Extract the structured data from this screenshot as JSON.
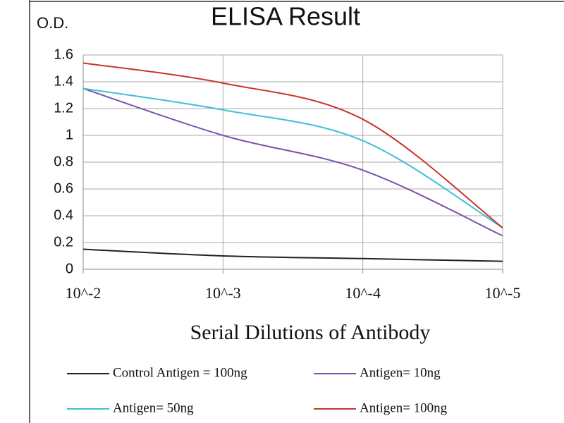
{
  "chart_data": {
    "type": "line",
    "title": "ELISA Result",
    "y_label": "O.D.",
    "x_label": "Serial Dilutions  of Antibody",
    "categories": [
      "10^-2",
      "10^-3",
      "10^-4",
      "10^-5"
    ],
    "series": [
      {
        "name": "Control Antigen = 100ng",
        "color": "#222222",
        "values": [
          0.15,
          0.1,
          0.08,
          0.06
        ]
      },
      {
        "name": "Antigen= 10ng",
        "color": "#7b52a6",
        "values": [
          1.35,
          1.0,
          0.74,
          0.25
        ]
      },
      {
        "name": "Antigen= 50ng",
        "color": "#3fbfd8",
        "values": [
          1.35,
          1.19,
          0.96,
          0.31
        ]
      },
      {
        "name": "Antigen= 100ng",
        "color": "#c8362e",
        "values": [
          1.54,
          1.39,
          1.12,
          0.31
        ]
      }
    ],
    "ylim": [
      0,
      1.6
    ],
    "yticks": [
      0,
      0.2,
      0.4,
      0.6,
      0.8,
      1,
      1.2,
      1.4,
      1.6
    ],
    "grid": true
  }
}
